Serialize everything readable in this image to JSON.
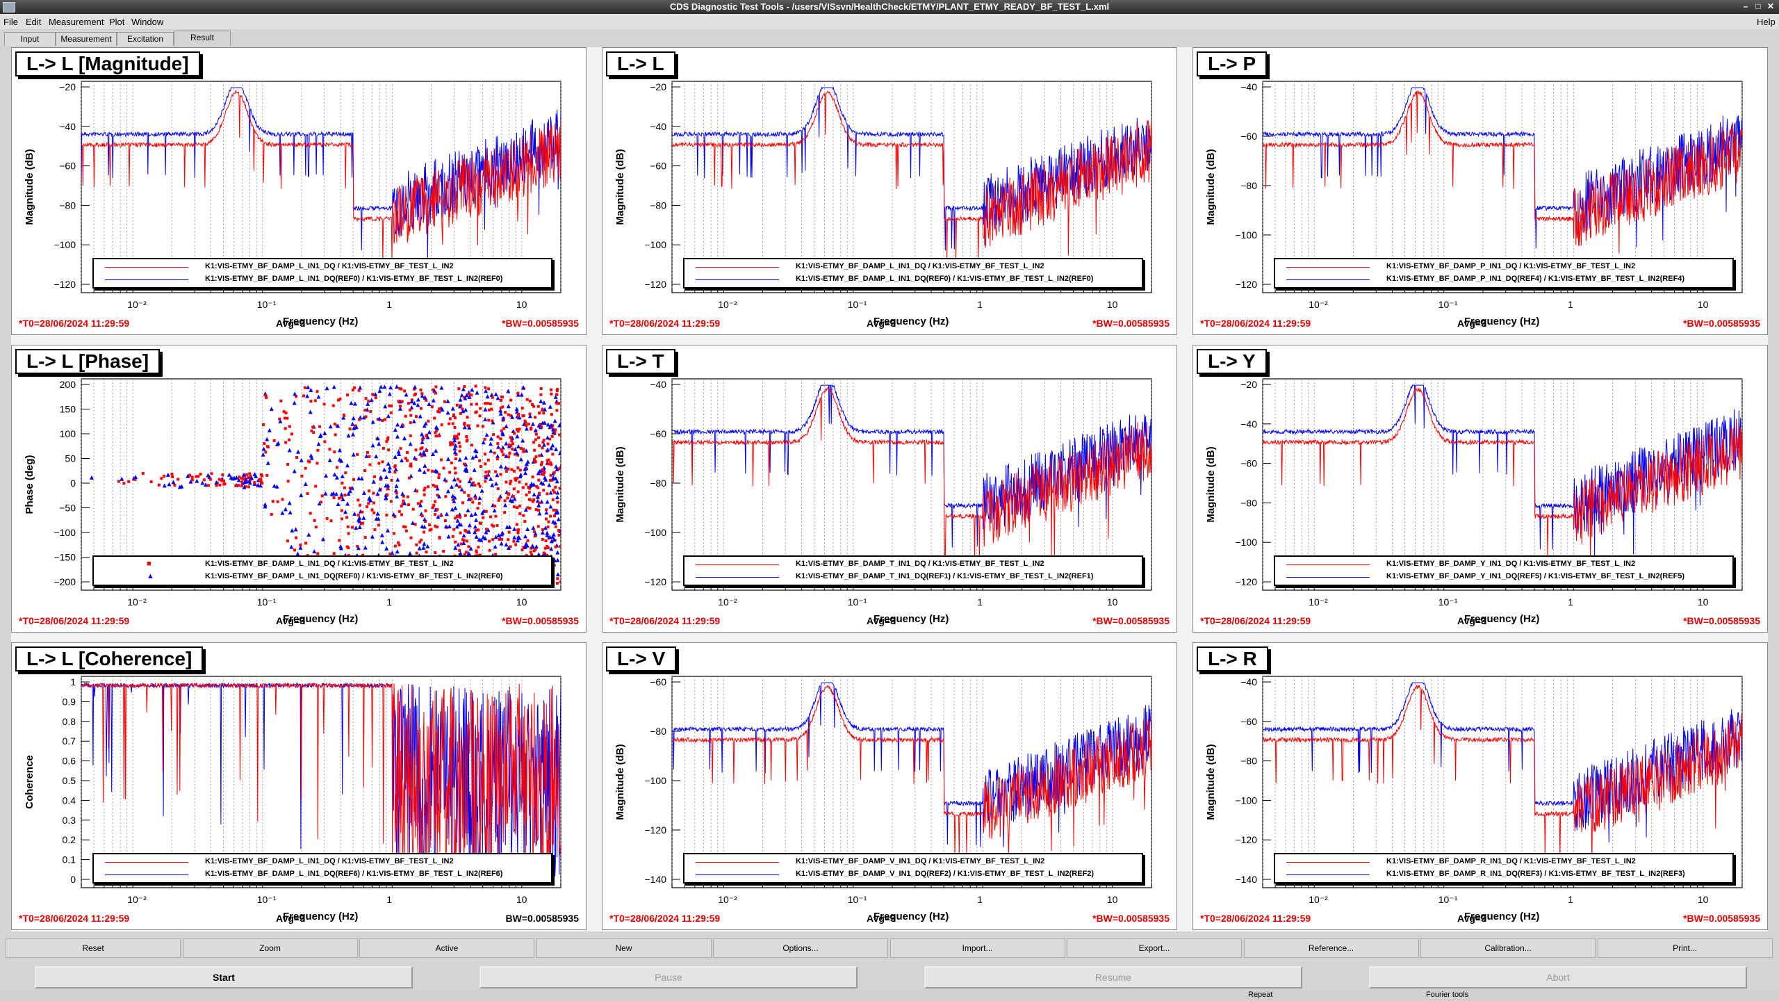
{
  "window": {
    "title": "CDS Diagnostic Test Tools - /users/VISsvn/HealthCheck/ETMY/PLANT_ETMY_READY_BF_TEST_L.xml"
  },
  "menu": [
    "File",
    "Edit",
    "Measurement",
    "Plot",
    "Window"
  ],
  "menu_help": "Help",
  "tabs": [
    "Input",
    "Measurement",
    "Excitation",
    "Result"
  ],
  "active_tab": "Result",
  "colors": {
    "red": "#ff0000",
    "blue": "#0000ff",
    "status_red": "#e00000"
  },
  "xaxis": {
    "label": "Frequency (Hz)",
    "ticks": [
      "10⁻²",
      "10⁻¹",
      "1",
      "10"
    ]
  },
  "panels": [
    {
      "title": "L-> L [Magnitude]",
      "ylabel": "Magnitude (dB)",
      "yticks": [
        "−20",
        "−40",
        "−60",
        "−80",
        "−100",
        "−120"
      ],
      "legend": [
        "K1:VIS-ETMY_BF_DAMP_L_IN1_DQ / K1:VIS-ETMY_BF_TEST_L_IN2",
        "K1:VIS-ETMY_BF_DAMP_L_IN1_DQ(REF0) / K1:VIS-ETMY_BF_TEST_L_IN2(REF0)"
      ],
      "t0": "*T0=28/06/2024 11:29:59",
      "avg": "Avg=3",
      "bw": "*BW=0.00585935"
    },
    {
      "title": "L-> L",
      "ylabel": "Magnitude (dB)",
      "yticks": [
        "−20",
        "−40",
        "−60",
        "−80",
        "−100",
        "−120"
      ],
      "legend": [
        "K1:VIS-ETMY_BF_DAMP_L_IN1_DQ / K1:VIS-ETMY_BF_TEST_L_IN2",
        "K1:VIS-ETMY_BF_DAMP_L_IN1_DQ(REF0) / K1:VIS-ETMY_BF_TEST_L_IN2(REF0)"
      ],
      "t0": "*T0=28/06/2024 11:29:59",
      "avg": "Avg=3",
      "bw": "*BW=0.00585935"
    },
    {
      "title": "L-> P",
      "ylabel": "Magnitude (dB)",
      "yticks": [
        "−40",
        "−60",
        "−80",
        "−100",
        "−120"
      ],
      "legend": [
        "K1:VIS-ETMY_BF_DAMP_P_IN1_DQ / K1:VIS-ETMY_BF_TEST_L_IN2",
        "K1:VIS-ETMY_BF_DAMP_P_IN1_DQ(REF4) / K1:VIS-ETMY_BF_TEST_L_IN2(REF4)"
      ],
      "t0": "*T0=28/06/2024 11:29:59",
      "avg": "Avg=3",
      "bw": "*BW=0.00585935"
    },
    {
      "title": "L-> L [Phase]",
      "ylabel": "Phase (deg)",
      "yticks": [
        "200",
        "150",
        "100",
        "50",
        "0",
        "−50",
        "−100",
        "−150",
        "−200"
      ],
      "legend": [
        "K1:VIS-ETMY_BF_DAMP_L_IN1_DQ / K1:VIS-ETMY_BF_TEST_L_IN2",
        "K1:VIS-ETMY_BF_DAMP_L_IN1_DQ(REF0) / K1:VIS-ETMY_BF_TEST_L_IN2(REF0)"
      ],
      "t0": "*T0=28/06/2024 11:29:59",
      "avg": "Avg=3",
      "bw": "*BW=0.00585935"
    },
    {
      "title": "L-> T",
      "ylabel": "Magnitude (dB)",
      "yticks": [
        "−40",
        "−60",
        "−80",
        "−100",
        "−120"
      ],
      "legend": [
        "K1:VIS-ETMY_BF_DAMP_T_IN1_DQ / K1:VIS-ETMY_BF_TEST_L_IN2",
        "K1:VIS-ETMY_BF_DAMP_T_IN1_DQ(REF1) / K1:VIS-ETMY_BF_TEST_L_IN2(REF1)"
      ],
      "t0": "*T0=28/06/2024 11:29:59",
      "avg": "Avg=3",
      "bw": "*BW=0.00585935"
    },
    {
      "title": "L-> Y",
      "ylabel": "Magnitude (dB)",
      "yticks": [
        "−20",
        "−40",
        "−60",
        "−80",
        "−100",
        "−120"
      ],
      "legend": [
        "K1:VIS-ETMY_BF_DAMP_Y_IN1_DQ / K1:VIS-ETMY_BF_TEST_L_IN2",
        "K1:VIS-ETMY_BF_DAMP_Y_IN1_DQ(REF5) / K1:VIS-ETMY_BF_TEST_L_IN2(REF5)"
      ],
      "t0": "*T0=28/06/2024 11:29:59",
      "avg": "Avg=3",
      "bw": "*BW=0.00585935"
    },
    {
      "title": "L-> L [Coherence]",
      "ylabel": "Coherence",
      "yticks": [
        "1",
        "0.9",
        "0.8",
        "0.7",
        "0.6",
        "0.5",
        "0.4",
        "0.3",
        "0.2",
        "0.1",
        "0"
      ],
      "legend": [
        "K1:VIS-ETMY_BF_DAMP_L_IN1_DQ / K1:VIS-ETMY_BF_TEST_L_IN2",
        "K1:VIS-ETMY_BF_DAMP_L_IN1_DQ(REF6) / K1:VIS-ETMY_BF_TEST_L_IN2(REF6)"
      ],
      "t0": "*T0=28/06/2024 11:29:59",
      "avg": "Avg=3",
      "bw": "BW=0.00585935"
    },
    {
      "title": "L-> V",
      "ylabel": "Magnitude (dB)",
      "yticks": [
        "−60",
        "−80",
        "−100",
        "−120",
        "−140"
      ],
      "legend": [
        "K1:VIS-ETMY_BF_DAMP_V_IN1_DQ / K1:VIS-ETMY_BF_TEST_L_IN2",
        "K1:VIS-ETMY_BF_DAMP_V_IN1_DQ(REF2) / K1:VIS-ETMY_BF_TEST_L_IN2(REF2)"
      ],
      "t0": "*T0=28/06/2024 11:29:59",
      "avg": "Avg=3",
      "bw": "*BW=0.00585935"
    },
    {
      "title": "L-> R",
      "ylabel": "Magnitude (dB)",
      "yticks": [
        "−40",
        "−60",
        "−80",
        "−100",
        "−120",
        "−140"
      ],
      "legend": [
        "K1:VIS-ETMY_BF_DAMP_R_IN1_DQ / K1:VIS-ETMY_BF_TEST_L_IN2",
        "K1:VIS-ETMY_BF_DAMP_R_IN1_DQ(REF3) / K1:VIS-ETMY_BF_TEST_L_IN2(REF3)"
      ],
      "t0": "*T0=28/06/2024 11:29:59",
      "avg": "Avg=3",
      "bw": "*BW=0.00585935"
    }
  ],
  "buttons": [
    "Reset",
    "Zoom",
    "Active",
    "New",
    "Options...",
    "Import...",
    "Export...",
    "Reference...",
    "Calibration...",
    "Print..."
  ],
  "run_buttons": [
    "Start",
    "Pause",
    "Resume",
    "Abort"
  ],
  "status": [
    "Repeat",
    "Fourier tools"
  ]
}
